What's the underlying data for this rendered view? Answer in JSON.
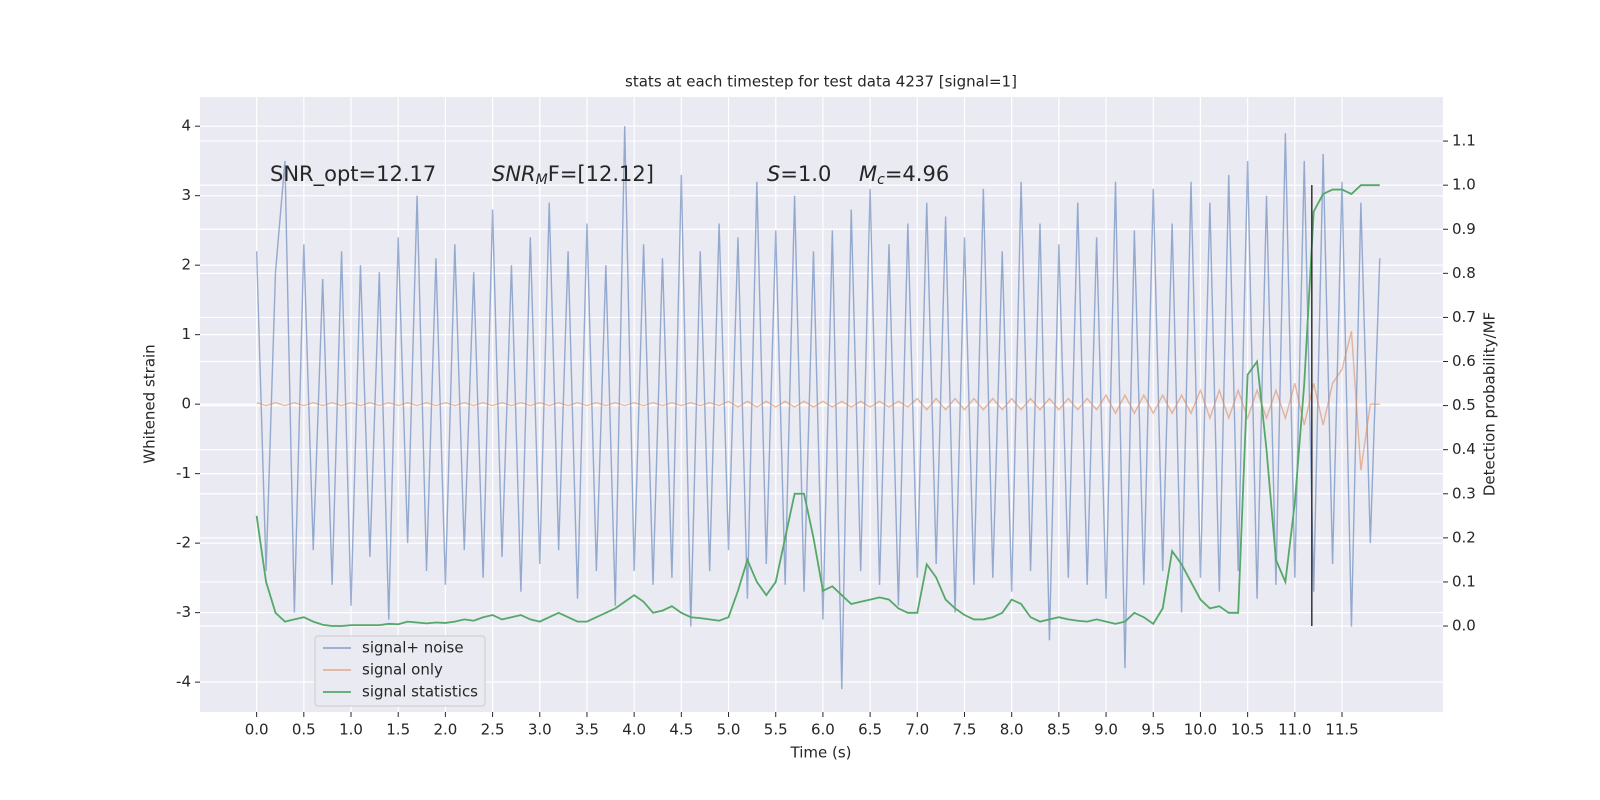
{
  "chart_data": {
    "type": "line",
    "title": "stats at each timestep for test data 4237 [signal=1]",
    "xlabel": "Time (s)",
    "ylabel": "Whitened strain",
    "y2label": "Detection probability/MF",
    "annotations": [
      {
        "text": "SNR_opt=12.17"
      },
      {
        "text": "SNR",
        "sub": "M",
        "tail": "F=[12.12]"
      },
      {
        "text": "S",
        "tail": "=1.0"
      },
      {
        "text": "M",
        "sub": "c",
        "tail": "=4.96"
      }
    ],
    "vline": {
      "x": 11.18,
      "y2": [
        0,
        1
      ],
      "color": "#333333"
    },
    "grid": true,
    "legend": "lower left",
    "xlim": [
      -0.6,
      12.57
    ],
    "ylim": [
      -4.43,
      4.42
    ],
    "y2lim": [
      -0.195,
      1.2
    ],
    "xticks": [
      {
        "value": 0,
        "label": "0.0"
      },
      0.5,
      {
        "value": 1,
        "label": "1.0"
      },
      1.5,
      {
        "value": 2,
        "label": "2.0"
      },
      2.5,
      {
        "value": 3,
        "label": "3.0"
      },
      3.5,
      {
        "value": 4,
        "label": "4.0"
      },
      4.5,
      {
        "value": 5,
        "label": "5.0"
      },
      5.5,
      {
        "value": 6,
        "label": "6.0"
      },
      6.5,
      {
        "value": 7,
        "label": "7.0"
      },
      7.5,
      {
        "value": 8,
        "label": "8.0"
      },
      8.5,
      {
        "value": 9,
        "label": "9.0"
      },
      9.5,
      {
        "value": 10,
        "label": "10.0"
      },
      10.5,
      {
        "value": 11,
        "label": "11.0"
      },
      11.5
    ],
    "yticks": [
      -4,
      -3,
      -2,
      -1,
      0,
      1,
      2,
      3,
      4
    ],
    "y2ticks": [
      {
        "value": 0,
        "label": "0.0"
      },
      0.1,
      0.2,
      0.3,
      0.4,
      0.5,
      0.6,
      0.7,
      0.8,
      0.9,
      {
        "value": 1,
        "label": "1.0"
      },
      1.1
    ],
    "x": [
      0,
      0.1,
      0.2,
      0.3,
      0.4,
      0.5,
      0.6,
      0.7,
      0.8,
      0.9,
      1,
      1.1,
      1.2,
      1.3,
      1.4,
      1.5,
      1.6,
      1.7,
      1.8,
      1.9,
      2,
      2.1,
      2.2,
      2.3,
      2.4,
      2.5,
      2.6,
      2.7,
      2.8,
      2.9,
      3,
      3.1,
      3.2,
      3.3,
      3.4,
      3.5,
      3.6,
      3.7,
      3.8,
      3.9,
      4,
      4.1,
      4.2,
      4.3,
      4.4,
      4.5,
      4.6,
      4.7,
      4.8,
      4.9,
      5,
      5.1,
      5.2,
      5.3,
      5.4,
      5.5,
      5.6,
      5.7,
      5.8,
      5.9,
      6,
      6.1,
      6.2,
      6.3,
      6.4,
      6.5,
      6.6,
      6.7,
      6.8,
      6.9,
      7,
      7.1,
      7.2,
      7.3,
      7.4,
      7.5,
      7.6,
      7.7,
      7.8,
      7.9,
      8,
      8.1,
      8.2,
      8.3,
      8.4,
      8.5,
      8.6,
      8.7,
      8.8,
      8.9,
      9,
      9.1,
      9.2,
      9.3,
      9.4,
      9.5,
      9.6,
      9.7,
      9.8,
      9.9,
      10,
      10.1,
      10.2,
      10.3,
      10.4,
      10.5,
      10.6,
      10.7,
      10.8,
      10.9,
      11,
      11.1,
      11.2,
      11.3,
      11.4,
      11.5,
      11.6,
      11.7,
      11.8,
      11.9
    ],
    "series": [
      {
        "name": "signal+ noise",
        "color": "#4c72b0",
        "values": [
          2.2,
          -2.4,
          1.9,
          3.5,
          -3.0,
          2.3,
          -2.1,
          1.8,
          -2.6,
          2.2,
          -2.9,
          2.0,
          -2.2,
          1.9,
          -3.1,
          2.4,
          -2.0,
          3.0,
          -2.4,
          2.1,
          -2.6,
          2.3,
          -2.1,
          1.9,
          -2.5,
          2.8,
          -2.2,
          2.0,
          -2.7,
          2.4,
          -2.3,
          2.9,
          -2.1,
          2.2,
          -2.8,
          2.6,
          -2.4,
          2.0,
          -2.9,
          4.0,
          -2.4,
          2.3,
          -2.6,
          2.1,
          -2.5,
          3.3,
          -3.2,
          2.2,
          -2.4,
          2.6,
          -2.1,
          2.4,
          -2.8,
          3.2,
          -2.3,
          2.5,
          -2.6,
          3.0,
          -2.7,
          2.2,
          -3.1,
          2.5,
          -4.1,
          2.8,
          -2.4,
          3.1,
          -2.6,
          2.3,
          -2.9,
          2.6,
          -2.5,
          2.9,
          -2.3,
          2.7,
          -3.0,
          2.4,
          -2.6,
          3.1,
          -2.5,
          2.2,
          -2.7,
          3.2,
          -2.4,
          2.6,
          -3.4,
          2.3,
          -2.5,
          2.9,
          -2.6,
          2.4,
          -2.8,
          3.2,
          -3.8,
          2.5,
          -2.6,
          3.1,
          -2.4,
          2.6,
          -3.0,
          3.2,
          -2.5,
          2.9,
          -2.7,
          3.3,
          -2.4,
          3.5,
          -2.8,
          3.0,
          -2.6,
          3.9,
          -2.5,
          3.5,
          -2.7,
          3.6,
          -2.3,
          3.2,
          -3.2,
          2.9,
          -2.0,
          2.1
        ]
      },
      {
        "name": "signal only",
        "color": "#dd8452",
        "values": [
          0.02,
          -0.02,
          0.02,
          -0.02,
          0.02,
          -0.02,
          0.02,
          -0.02,
          0.02,
          -0.02,
          0.02,
          -0.02,
          0.02,
          -0.02,
          0.02,
          -0.02,
          0.02,
          -0.02,
          0.02,
          -0.02,
          0.02,
          -0.02,
          0.02,
          -0.02,
          0.02,
          -0.02,
          0.02,
          -0.02,
          0.02,
          -0.02,
          0.02,
          -0.02,
          0.02,
          -0.02,
          0.02,
          -0.02,
          0.02,
          -0.02,
          0.02,
          -0.02,
          0.02,
          -0.02,
          0.02,
          -0.02,
          0.02,
          -0.02,
          0.02,
          -0.02,
          0.02,
          -0.02,
          0.04,
          -0.04,
          0.04,
          -0.04,
          0.04,
          -0.04,
          0.04,
          -0.04,
          0.04,
          -0.04,
          0.04,
          -0.04,
          0.04,
          -0.04,
          0.04,
          -0.04,
          0.04,
          -0.04,
          0.04,
          -0.04,
          0.08,
          -0.08,
          0.08,
          -0.08,
          0.08,
          -0.08,
          0.08,
          -0.08,
          0.08,
          -0.08,
          0.08,
          -0.08,
          0.08,
          -0.08,
          0.08,
          -0.08,
          0.08,
          -0.08,
          0.08,
          -0.08,
          0.13,
          -0.13,
          0.13,
          -0.13,
          0.13,
          -0.13,
          0.13,
          -0.13,
          0.13,
          -0.13,
          0.2,
          -0.2,
          0.2,
          -0.2,
          0.2,
          -0.2,
          0.2,
          -0.2,
          0.2,
          -0.2,
          0.3,
          -0.3,
          0.3,
          -0.3,
          0.3,
          0.5,
          1.05,
          -0.95,
          0,
          0
        ]
      },
      {
        "name": "signal statistics",
        "color": "#55a868",
        "axis": "y2",
        "values": [
          0.25,
          0.1,
          0.03,
          0.01,
          0.015,
          0.02,
          0.01,
          0.003,
          0,
          0,
          0.002,
          0.002,
          0.002,
          0.002,
          0.005,
          0.004,
          0.01,
          0.008,
          0.006,
          0.008,
          0.007,
          0.01,
          0.015,
          0.012,
          0.02,
          0.025,
          0.015,
          0.02,
          0.025,
          0.015,
          0.01,
          0.02,
          0.03,
          0.02,
          0.01,
          0.01,
          0.02,
          0.03,
          0.04,
          0.055,
          0.07,
          0.055,
          0.03,
          0.035,
          0.045,
          0.03,
          0.02,
          0.018,
          0.015,
          0.012,
          0.02,
          0.08,
          0.15,
          0.1,
          0.07,
          0.1,
          0.2,
          0.3,
          0.3,
          0.2,
          0.08,
          0.09,
          0.07,
          0.05,
          0.055,
          0.06,
          0.065,
          0.06,
          0.04,
          0.03,
          0.03,
          0.14,
          0.11,
          0.06,
          0.04,
          0.025,
          0.015,
          0.015,
          0.02,
          0.03,
          0.06,
          0.05,
          0.02,
          0.01,
          0.015,
          0.02,
          0.015,
          0.012,
          0.01,
          0.015,
          0.01,
          0.005,
          0.01,
          0.03,
          0.02,
          0.005,
          0.04,
          0.17,
          0.14,
          0.1,
          0.06,
          0.04,
          0.045,
          0.03,
          0.03,
          0.57,
          0.6,
          0.4,
          0.15,
          0.1,
          0.28,
          0.55,
          0.94,
          0.98,
          0.99,
          0.99,
          0.98,
          1,
          1,
          1
        ]
      }
    ]
  }
}
